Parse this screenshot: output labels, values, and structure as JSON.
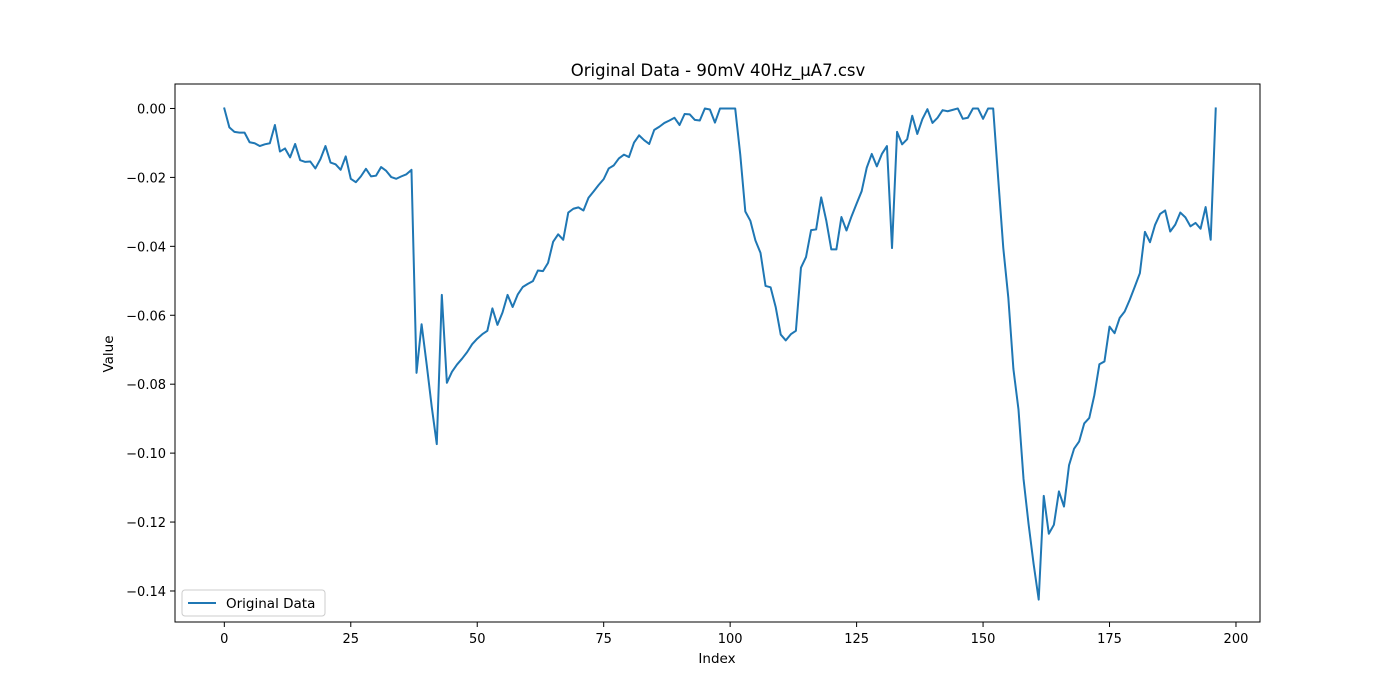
{
  "chart_data": {
    "type": "line",
    "title": "Original Data - 90mV 40Hz_µA7.csv",
    "xlabel": "Index",
    "ylabel": "Value",
    "xlim": [
      -9.75,
      204.75
    ],
    "ylim": [
      -0.149,
      0.0071
    ],
    "xticks": [
      0,
      25,
      50,
      75,
      100,
      125,
      150,
      175,
      200
    ],
    "xtick_labels": [
      "0",
      "25",
      "50",
      "75",
      "100",
      "125",
      "150",
      "175",
      "200"
    ],
    "yticks": [
      0.0,
      -0.02,
      -0.04,
      -0.06,
      -0.08,
      -0.1,
      -0.12,
      -0.14
    ],
    "ytick_labels": [
      "0.00",
      "−0.02",
      "−0.04",
      "−0.06",
      "−0.08",
      "−0.10",
      "−0.12",
      "−0.14"
    ],
    "grid": false,
    "legend_position": "lower-left",
    "series": [
      {
        "name": "Original Data",
        "color": "#1f77b4",
        "values": [
          0.0,
          -0.0055,
          -0.0068,
          -0.007,
          -0.007,
          -0.0098,
          -0.0101,
          -0.0109,
          -0.0104,
          -0.0101,
          -0.0048,
          -0.0125,
          -0.0116,
          -0.0142,
          -0.0103,
          -0.015,
          -0.0155,
          -0.0154,
          -0.0174,
          -0.0147,
          -0.0109,
          -0.0157,
          -0.0162,
          -0.0178,
          -0.0139,
          -0.0204,
          -0.0214,
          -0.0197,
          -0.0175,
          -0.0197,
          -0.0195,
          -0.017,
          -0.0181,
          -0.0199,
          -0.0204,
          -0.0197,
          -0.0191,
          -0.0178,
          -0.0767,
          -0.0626,
          -0.0742,
          -0.0865,
          -0.0974,
          -0.0541,
          -0.0796,
          -0.0764,
          -0.0743,
          -0.0726,
          -0.0707,
          -0.0684,
          -0.0668,
          -0.0655,
          -0.0645,
          -0.058,
          -0.0628,
          -0.0592,
          -0.0541,
          -0.0576,
          -0.054,
          -0.0518,
          -0.0509,
          -0.0501,
          -0.047,
          -0.0472,
          -0.0448,
          -0.0387,
          -0.0365,
          -0.0381,
          -0.0302,
          -0.0291,
          -0.0287,
          -0.0296,
          -0.0259,
          -0.0241,
          -0.0222,
          -0.0205,
          -0.0174,
          -0.0165,
          -0.0145,
          -0.0134,
          -0.0141,
          -0.0099,
          -0.0078,
          -0.0092,
          -0.0103,
          -0.0062,
          -0.0053,
          -0.0042,
          -0.0035,
          -0.0027,
          -0.0048,
          -0.0016,
          -0.0017,
          -0.0033,
          -0.0035,
          0.0,
          -0.0003,
          -0.0041,
          0.0,
          0.0,
          0.0,
          0.0,
          -0.0134,
          -0.0299,
          -0.0326,
          -0.0383,
          -0.0419,
          -0.0515,
          -0.0519,
          -0.0576,
          -0.0656,
          -0.0673,
          -0.0655,
          -0.0645,
          -0.0462,
          -0.0431,
          -0.0353,
          -0.0351,
          -0.0258,
          -0.0325,
          -0.0409,
          -0.0409,
          -0.0315,
          -0.0354,
          -0.0313,
          -0.0276,
          -0.024,
          -0.0172,
          -0.0132,
          -0.0168,
          -0.0132,
          -0.0109,
          -0.0405,
          -0.0068,
          -0.0104,
          -0.0089,
          -0.0021,
          -0.0074,
          -0.0031,
          -0.0002,
          -0.0042,
          -0.0027,
          -0.0005,
          -0.0008,
          -0.0004,
          0.0,
          -0.003,
          -0.0027,
          0.0,
          0.0,
          -0.003,
          0.0,
          0.0,
          -0.0205,
          -0.0405,
          -0.055,
          -0.0756,
          -0.0873,
          -0.1075,
          -0.1206,
          -0.1322,
          -0.1425,
          -0.1124,
          -0.1234,
          -0.1208,
          -0.1111,
          -0.1155,
          -0.1035,
          -0.0987,
          -0.0966,
          -0.0914,
          -0.0898,
          -0.0832,
          -0.0742,
          -0.0734,
          -0.0633,
          -0.0652,
          -0.0608,
          -0.0589,
          -0.0555,
          -0.0517,
          -0.0478,
          -0.0358,
          -0.0388,
          -0.0338,
          -0.0306,
          -0.0296,
          -0.0357,
          -0.0337,
          -0.0302,
          -0.0316,
          -0.0342,
          -0.0332,
          -0.0349,
          -0.0286,
          -0.0381,
          0.0
        ]
      }
    ]
  }
}
